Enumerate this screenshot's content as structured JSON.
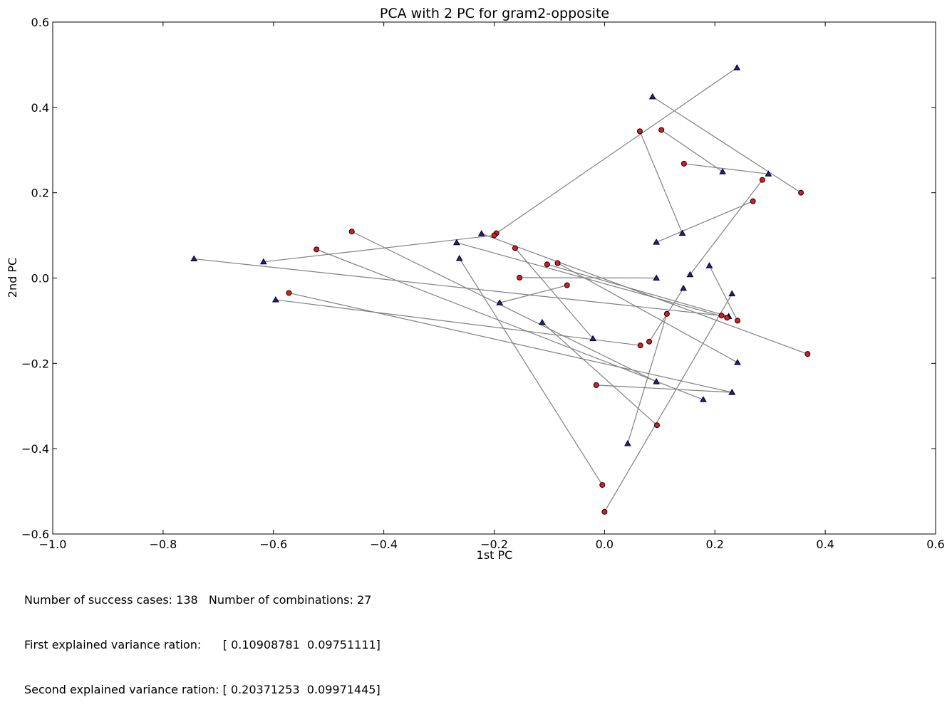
{
  "chart_data": {
    "type": "scatter",
    "title": "PCA with 2 PC for gram2-opposite",
    "xlabel": "1st PC",
    "ylabel": "2nd PC",
    "xlim": [
      -1.0,
      0.6
    ],
    "ylim": [
      -0.6,
      0.6
    ],
    "x_ticks": [
      -1.0,
      -0.8,
      -0.6,
      -0.4,
      -0.2,
      0.0,
      0.2,
      0.4,
      0.6
    ],
    "x_tick_labels": [
      "−1.0",
      "−0.8",
      "−0.6",
      "−0.4",
      "−0.2",
      "0.0",
      "0.2",
      "0.4",
      "0.6"
    ],
    "y_ticks": [
      -0.6,
      -0.4,
      -0.2,
      0.0,
      0.2,
      0.4,
      0.6
    ],
    "y_tick_labels": [
      "−0.6",
      "−0.4",
      "−0.2",
      "0.0",
      "0.2",
      "0.4",
      "0.6"
    ],
    "grid": false,
    "legend": "none",
    "colors": {
      "circle": "#e31a1c",
      "triangle": "#1f1fa8",
      "line": "#808080"
    },
    "markers": {
      "circle": "circle",
      "triangle": "triangle"
    },
    "pairs": [
      {
        "circle": [
          -0.196,
          0.105
        ],
        "triangle": [
          0.24,
          0.493
        ]
      },
      {
        "circle": [
          0.356,
          0.2
        ],
        "triangle": [
          0.087,
          0.425
        ]
      },
      {
        "circle": [
          0.064,
          0.344
        ],
        "triangle": [
          0.141,
          0.105
        ]
      },
      {
        "circle": [
          0.103,
          0.347
        ],
        "triangle": [
          0.214,
          0.249
        ]
      },
      {
        "circle": [
          0.144,
          0.268
        ],
        "triangle": [
          0.297,
          0.244
        ]
      },
      {
        "circle": [
          0.269,
          0.18
        ],
        "triangle": [
          0.094,
          0.084
        ]
      },
      {
        "circle": [
          0.286,
          0.23
        ],
        "triangle": [
          0.155,
          0.008
        ]
      },
      {
        "circle": [
          -0.2,
          0.1
        ],
        "triangle": [
          -0.618,
          0.038
        ]
      },
      {
        "circle": [
          -0.458,
          0.109
        ],
        "triangle": [
          0.094,
          -0.243
        ]
      },
      {
        "circle": [
          -0.522,
          0.067
        ],
        "triangle": [
          0.179,
          -0.285
        ]
      },
      {
        "circle": [
          -0.154,
          0.001
        ],
        "triangle": [
          0.094,
          0.0
        ]
      },
      {
        "circle": [
          -0.068,
          -0.017
        ],
        "triangle": [
          -0.19,
          -0.058
        ]
      },
      {
        "circle": [
          -0.104,
          0.032
        ],
        "triangle": [
          0.225,
          -0.09
        ]
      },
      {
        "circle": [
          -0.162,
          0.07
        ],
        "triangle": [
          -0.021,
          -0.142
        ]
      },
      {
        "circle": [
          -0.085,
          0.035
        ],
        "triangle": [
          0.241,
          -0.198
        ]
      },
      {
        "circle": [
          0.368,
          -0.178
        ],
        "triangle": [
          -0.223,
          0.104
        ]
      },
      {
        "circle": [
          0.212,
          -0.088
        ],
        "triangle": [
          -0.744,
          0.045
        ]
      },
      {
        "circle": [
          0.222,
          -0.093
        ],
        "triangle": [
          -0.268,
          0.083
        ]
      },
      {
        "circle": [
          -0.572,
          -0.035
        ],
        "triangle": [
          0.231,
          -0.268
        ]
      },
      {
        "circle": [
          0.065,
          -0.158
        ],
        "triangle": [
          -0.596,
          -0.051
        ]
      },
      {
        "circle": [
          0.081,
          -0.149
        ],
        "triangle": [
          0.143,
          -0.024
        ]
      },
      {
        "circle": [
          0.241,
          -0.1
        ],
        "triangle": [
          0.19,
          0.029
        ]
      },
      {
        "circle": [
          -0.015,
          -0.251
        ],
        "triangle": [
          0.231,
          -0.268
        ]
      },
      {
        "circle": [
          0.095,
          -0.345
        ],
        "triangle": [
          -0.113,
          -0.104
        ]
      },
      {
        "circle": [
          -0.004,
          -0.485
        ],
        "triangle": [
          -0.263,
          0.046
        ]
      },
      {
        "circle": [
          0.0,
          -0.548
        ],
        "triangle": [
          0.231,
          -0.037
        ]
      },
      {
        "circle": [
          0.113,
          -0.084
        ],
        "triangle": [
          0.042,
          -0.388
        ]
      }
    ]
  },
  "notes": {
    "line1": "Number of success cases: 138   Number of combinations: 27",
    "line2": "First explained variance ration:      [ 0.10908781  0.09751111]",
    "line3": "Second explained variance ration: [ 0.20371253  0.09971445]"
  }
}
